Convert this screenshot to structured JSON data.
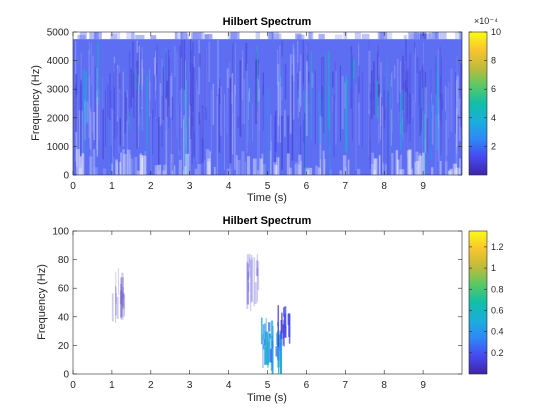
{
  "colors": {
    "colormap": [
      "#3e26a8",
      "#4748f0",
      "#2e87f7",
      "#1aaedb",
      "#10bfa8",
      "#5ac864",
      "#c0bb3a",
      "#f9c52d",
      "#f9fb15"
    ],
    "axis": "#262626"
  },
  "chart_data": [
    {
      "type": "heatmap",
      "title": "Hilbert Spectrum",
      "xlabel": "Time (s)",
      "ylabel": "Frequency (Hz)",
      "xlim": [
        0,
        10
      ],
      "ylim": [
        0,
        5000
      ],
      "xticks": [
        "0",
        "1",
        "2",
        "3",
        "4",
        "5",
        "6",
        "7",
        "8",
        "9"
      ],
      "yticks": [
        "0",
        "1000",
        "2000",
        "3000",
        "4000",
        "5000"
      ],
      "colorbar": {
        "ticks": [
          "2",
          "4",
          "6",
          "8",
          "10"
        ],
        "exponent_label": "×10⁻⁴",
        "lim": [
          0,
          10
        ]
      },
      "band_upper_hz": 4750,
      "typical_level": 1.5
    },
    {
      "type": "heatmap",
      "title": "Hilbert Spectrum",
      "xlabel": "Time (s)",
      "ylabel": "Frequency (Hz)",
      "xlim": [
        0,
        10
      ],
      "ylim": [
        0,
        100
      ],
      "xticks": [
        "0",
        "1",
        "2",
        "3",
        "4",
        "5",
        "6",
        "7",
        "8",
        "9"
      ],
      "yticks": [
        "0",
        "20",
        "40",
        "60",
        "80",
        "100"
      ],
      "colorbar": {
        "ticks": [
          "0.2",
          "0.4",
          "0.6",
          "0.8",
          "1",
          "1.2"
        ],
        "lim": [
          0,
          1.35
        ]
      },
      "features": [
        {
          "t": 1.15,
          "f_low": 38,
          "f_high": 75,
          "level": 0.05
        },
        {
          "t": 4.6,
          "f_low": 45,
          "f_high": 85,
          "level": 0.1
        },
        {
          "t": 4.95,
          "f_low": 5,
          "f_high": 40,
          "level": 0.55
        },
        {
          "t": 5.2,
          "f_low": 0,
          "f_high": 36,
          "level": 0.5
        },
        {
          "t": 5.4,
          "f_low": 20,
          "f_high": 52,
          "level": 0.2
        }
      ]
    }
  ]
}
